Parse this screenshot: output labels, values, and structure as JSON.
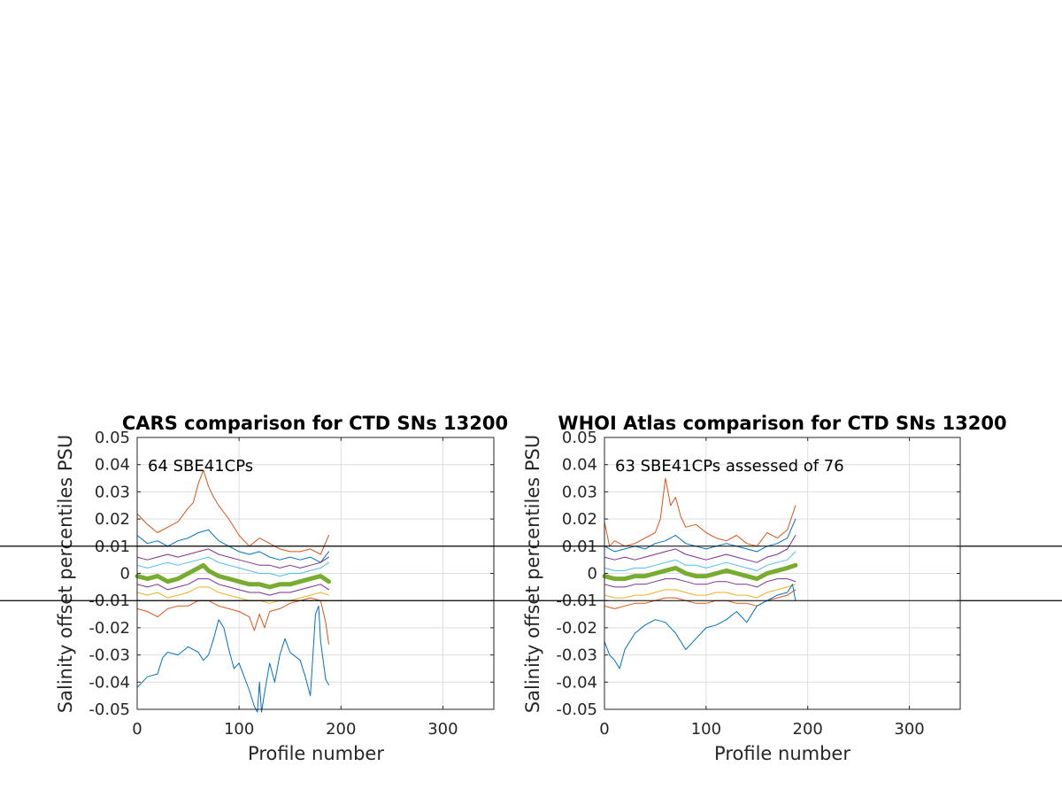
{
  "chart_data": [
    {
      "type": "line",
      "title": "CARS comparison for CTD SNs 13200",
      "xlabel": "Profile number",
      "ylabel": "Salinity offset percentiles PSU",
      "xlim": [
        0,
        350
      ],
      "ylim": [
        -0.05,
        0.05
      ],
      "xticks": [
        "0",
        "100",
        "200",
        "300"
      ],
      "yticks": [
        "0.05",
        "0.04",
        "0.03",
        "0.02",
        "0.01",
        "0",
        "-0.01",
        "-0.02",
        "-0.03",
        "-0.04",
        "-0.05"
      ],
      "grid": true,
      "annotation": "64 SBE41CPs",
      "reference_lines": [
        0.01,
        -0.01
      ],
      "series": [
        {
          "color": "#d95319",
          "x": [
            0,
            10,
            20,
            30,
            40,
            50,
            55,
            60,
            65,
            70,
            75,
            80,
            90,
            100,
            110,
            120,
            130,
            140,
            150,
            160,
            170,
            180,
            188
          ],
          "y": [
            0.022,
            0.018,
            0.015,
            0.017,
            0.019,
            0.024,
            0.026,
            0.033,
            0.038,
            0.032,
            0.028,
            0.025,
            0.02,
            0.014,
            0.01,
            0.013,
            0.011,
            0.009,
            0.008,
            0.008,
            0.009,
            0.007,
            0.014
          ]
        },
        {
          "color": "#0072bd",
          "x": [
            0,
            10,
            20,
            30,
            40,
            50,
            60,
            70,
            80,
            90,
            100,
            110,
            120,
            130,
            140,
            150,
            160,
            170,
            180,
            188
          ],
          "y": [
            0.014,
            0.011,
            0.012,
            0.01,
            0.012,
            0.013,
            0.015,
            0.016,
            0.012,
            0.01,
            0.008,
            0.007,
            0.008,
            0.006,
            0.005,
            0.006,
            0.005,
            0.006,
            0.004,
            0.008
          ]
        },
        {
          "color": "#7e2f8e",
          "x": [
            0,
            10,
            20,
            30,
            40,
            50,
            60,
            70,
            80,
            90,
            100,
            110,
            120,
            130,
            140,
            150,
            160,
            170,
            180,
            188
          ],
          "y": [
            0.006,
            0.005,
            0.006,
            0.007,
            0.006,
            0.007,
            0.008,
            0.009,
            0.007,
            0.006,
            0.005,
            0.004,
            0.003,
            0.003,
            0.002,
            0.003,
            0.002,
            0.003,
            0.004,
            0.006
          ]
        },
        {
          "color": "#4dbeee",
          "x": [
            0,
            10,
            20,
            30,
            40,
            50,
            60,
            70,
            80,
            90,
            100,
            110,
            120,
            130,
            140,
            150,
            160,
            170,
            180,
            188
          ],
          "y": [
            0.003,
            0.002,
            0.003,
            0.004,
            0.003,
            0.004,
            0.005,
            0.006,
            0.004,
            0.003,
            0.002,
            0.001,
            0.0,
            0.0,
            -0.001,
            0.0,
            0.0,
            0.001,
            0.002,
            0.004
          ]
        },
        {
          "color": "#77ac30",
          "width": 5,
          "x": [
            0,
            10,
            20,
            30,
            40,
            50,
            60,
            65,
            70,
            80,
            90,
            100,
            110,
            120,
            130,
            140,
            150,
            160,
            170,
            180,
            188
          ],
          "y": [
            -0.001,
            -0.002,
            -0.001,
            -0.003,
            -0.002,
            0.0,
            0.002,
            0.003,
            0.001,
            -0.001,
            -0.002,
            -0.003,
            -0.004,
            -0.004,
            -0.005,
            -0.004,
            -0.004,
            -0.003,
            -0.002,
            -0.001,
            -0.003
          ]
        },
        {
          "color": "#7e2f8e",
          "x": [
            0,
            10,
            20,
            30,
            40,
            50,
            60,
            70,
            80,
            90,
            100,
            110,
            120,
            130,
            140,
            150,
            160,
            170,
            180,
            188
          ],
          "y": [
            -0.004,
            -0.005,
            -0.004,
            -0.006,
            -0.005,
            -0.004,
            -0.002,
            -0.002,
            -0.004,
            -0.005,
            -0.006,
            -0.007,
            -0.007,
            -0.008,
            -0.007,
            -0.007,
            -0.006,
            -0.005,
            -0.004,
            -0.006
          ]
        },
        {
          "color": "#edb120",
          "x": [
            0,
            10,
            20,
            30,
            40,
            50,
            60,
            70,
            80,
            90,
            100,
            110,
            120,
            130,
            140,
            150,
            160,
            170,
            180,
            188
          ],
          "y": [
            -0.007,
            -0.008,
            -0.007,
            -0.009,
            -0.008,
            -0.007,
            -0.005,
            -0.005,
            -0.007,
            -0.008,
            -0.009,
            -0.01,
            -0.01,
            -0.011,
            -0.01,
            -0.01,
            -0.009,
            -0.008,
            -0.007,
            -0.008
          ]
        },
        {
          "color": "#d95319",
          "x": [
            0,
            10,
            20,
            30,
            40,
            50,
            60,
            70,
            80,
            90,
            100,
            110,
            115,
            120,
            125,
            130,
            140,
            150,
            160,
            170,
            180,
            185,
            188
          ],
          "y": [
            -0.013,
            -0.014,
            -0.016,
            -0.013,
            -0.012,
            -0.012,
            -0.01,
            -0.01,
            -0.012,
            -0.013,
            -0.014,
            -0.016,
            -0.021,
            -0.015,
            -0.02,
            -0.014,
            -0.013,
            -0.011,
            -0.01,
            -0.009,
            -0.01,
            -0.018,
            -0.026
          ]
        },
        {
          "color": "#0072bd",
          "x": [
            0,
            5,
            10,
            20,
            25,
            30,
            40,
            50,
            60,
            65,
            70,
            75,
            80,
            85,
            90,
            95,
            100,
            105,
            110,
            115,
            118,
            120,
            122,
            125,
            130,
            135,
            140,
            145,
            150,
            160,
            165,
            170,
            175,
            178,
            180,
            185,
            188
          ],
          "y": [
            -0.042,
            -0.04,
            -0.038,
            -0.037,
            -0.031,
            -0.029,
            -0.03,
            -0.027,
            -0.029,
            -0.032,
            -0.03,
            -0.024,
            -0.017,
            -0.02,
            -0.028,
            -0.035,
            -0.033,
            -0.038,
            -0.043,
            -0.049,
            -0.051,
            -0.04,
            -0.051,
            -0.044,
            -0.033,
            -0.04,
            -0.03,
            -0.024,
            -0.029,
            -0.032,
            -0.038,
            -0.045,
            -0.015,
            -0.012,
            -0.025,
            -0.039,
            -0.041
          ]
        }
      ]
    },
    {
      "type": "line",
      "title": "WHOI Atlas comparison for CTD SNs 13200",
      "xlabel": "Profile number",
      "ylabel": "Salinity offset percentiles PSU",
      "xlim": [
        0,
        350
      ],
      "ylim": [
        -0.05,
        0.05
      ],
      "xticks": [
        "0",
        "100",
        "200",
        "300"
      ],
      "yticks": [
        "0.05",
        "0.04",
        "0.03",
        "0.02",
        "0.01",
        "0",
        "-0.01",
        "-0.02",
        "-0.03",
        "-0.04",
        "-0.05"
      ],
      "grid": true,
      "annotation": "63 SBE41CPs assessed of 76",
      "reference_lines": [
        0.01,
        -0.01
      ],
      "series": [
        {
          "color": "#d95319",
          "x": [
            0,
            5,
            10,
            20,
            30,
            40,
            50,
            55,
            60,
            65,
            70,
            75,
            80,
            90,
            100,
            110,
            120,
            130,
            140,
            150,
            160,
            170,
            180,
            188
          ],
          "y": [
            0.019,
            0.01,
            0.012,
            0.01,
            0.011,
            0.013,
            0.015,
            0.02,
            0.035,
            0.025,
            0.028,
            0.021,
            0.017,
            0.018,
            0.015,
            0.013,
            0.012,
            0.014,
            0.011,
            0.01,
            0.015,
            0.013,
            0.016,
            0.025
          ]
        },
        {
          "color": "#0072bd",
          "x": [
            0,
            10,
            20,
            30,
            40,
            50,
            60,
            70,
            80,
            90,
            100,
            110,
            120,
            130,
            140,
            150,
            160,
            170,
            180,
            188
          ],
          "y": [
            0.01,
            0.008,
            0.009,
            0.01,
            0.009,
            0.011,
            0.012,
            0.014,
            0.011,
            0.01,
            0.009,
            0.01,
            0.011,
            0.01,
            0.009,
            0.008,
            0.01,
            0.011,
            0.013,
            0.02
          ]
        },
        {
          "color": "#7e2f8e",
          "x": [
            0,
            10,
            20,
            30,
            40,
            50,
            60,
            70,
            80,
            90,
            100,
            110,
            120,
            130,
            140,
            150,
            160,
            170,
            180,
            188
          ],
          "y": [
            0.006,
            0.005,
            0.006,
            0.005,
            0.006,
            0.007,
            0.008,
            0.009,
            0.007,
            0.006,
            0.005,
            0.006,
            0.007,
            0.006,
            0.005,
            0.004,
            0.006,
            0.007,
            0.009,
            0.014
          ]
        },
        {
          "color": "#4dbeee",
          "x": [
            0,
            10,
            20,
            30,
            40,
            50,
            60,
            70,
            80,
            90,
            100,
            110,
            120,
            130,
            140,
            150,
            160,
            170,
            180,
            188
          ],
          "y": [
            0.002,
            0.001,
            0.001,
            0.002,
            0.002,
            0.003,
            0.004,
            0.005,
            0.003,
            0.003,
            0.002,
            0.003,
            0.004,
            0.003,
            0.002,
            0.001,
            0.003,
            0.004,
            0.005,
            0.008
          ]
        },
        {
          "color": "#77ac30",
          "width": 5,
          "x": [
            0,
            10,
            20,
            30,
            40,
            50,
            60,
            70,
            80,
            90,
            100,
            110,
            120,
            130,
            140,
            150,
            160,
            170,
            180,
            188
          ],
          "y": [
            -0.001,
            -0.002,
            -0.002,
            -0.001,
            -0.001,
            0.0,
            0.001,
            0.002,
            0.0,
            -0.001,
            -0.001,
            0.0,
            0.001,
            0.0,
            -0.001,
            -0.002,
            0.0,
            0.001,
            0.002,
            0.003
          ]
        },
        {
          "color": "#7e2f8e",
          "x": [
            0,
            10,
            20,
            30,
            40,
            50,
            60,
            70,
            80,
            90,
            100,
            110,
            120,
            130,
            140,
            150,
            160,
            170,
            180,
            188
          ],
          "y": [
            -0.004,
            -0.005,
            -0.005,
            -0.004,
            -0.004,
            -0.003,
            -0.002,
            -0.002,
            -0.003,
            -0.004,
            -0.004,
            -0.003,
            -0.003,
            -0.004,
            -0.004,
            -0.005,
            -0.003,
            -0.002,
            -0.002,
            -0.003
          ]
        },
        {
          "color": "#edb120",
          "x": [
            0,
            10,
            20,
            30,
            40,
            50,
            60,
            70,
            80,
            90,
            100,
            110,
            120,
            130,
            140,
            150,
            160,
            170,
            180,
            188
          ],
          "y": [
            -0.008,
            -0.009,
            -0.009,
            -0.008,
            -0.008,
            -0.007,
            -0.006,
            -0.006,
            -0.007,
            -0.008,
            -0.008,
            -0.007,
            -0.007,
            -0.008,
            -0.008,
            -0.009,
            -0.007,
            -0.006,
            -0.005,
            -0.004
          ]
        },
        {
          "color": "#d95319",
          "x": [
            0,
            10,
            20,
            30,
            40,
            50,
            60,
            70,
            80,
            90,
            100,
            110,
            120,
            130,
            140,
            150,
            160,
            170,
            180,
            188
          ],
          "y": [
            -0.012,
            -0.013,
            -0.012,
            -0.011,
            -0.011,
            -0.01,
            -0.009,
            -0.009,
            -0.01,
            -0.011,
            -0.011,
            -0.01,
            -0.01,
            -0.011,
            -0.011,
            -0.012,
            -0.01,
            -0.009,
            -0.008,
            -0.006
          ]
        },
        {
          "color": "#0072bd",
          "x": [
            0,
            5,
            10,
            15,
            20,
            30,
            40,
            50,
            60,
            70,
            75,
            80,
            90,
            100,
            110,
            120,
            130,
            140,
            150,
            160,
            170,
            180,
            185,
            188
          ],
          "y": [
            -0.025,
            -0.03,
            -0.032,
            -0.035,
            -0.028,
            -0.022,
            -0.019,
            -0.017,
            -0.018,
            -0.022,
            -0.025,
            -0.028,
            -0.024,
            -0.02,
            -0.019,
            -0.017,
            -0.014,
            -0.018,
            -0.012,
            -0.01,
            -0.008,
            -0.007,
            -0.004,
            -0.01
          ]
        }
      ]
    }
  ]
}
